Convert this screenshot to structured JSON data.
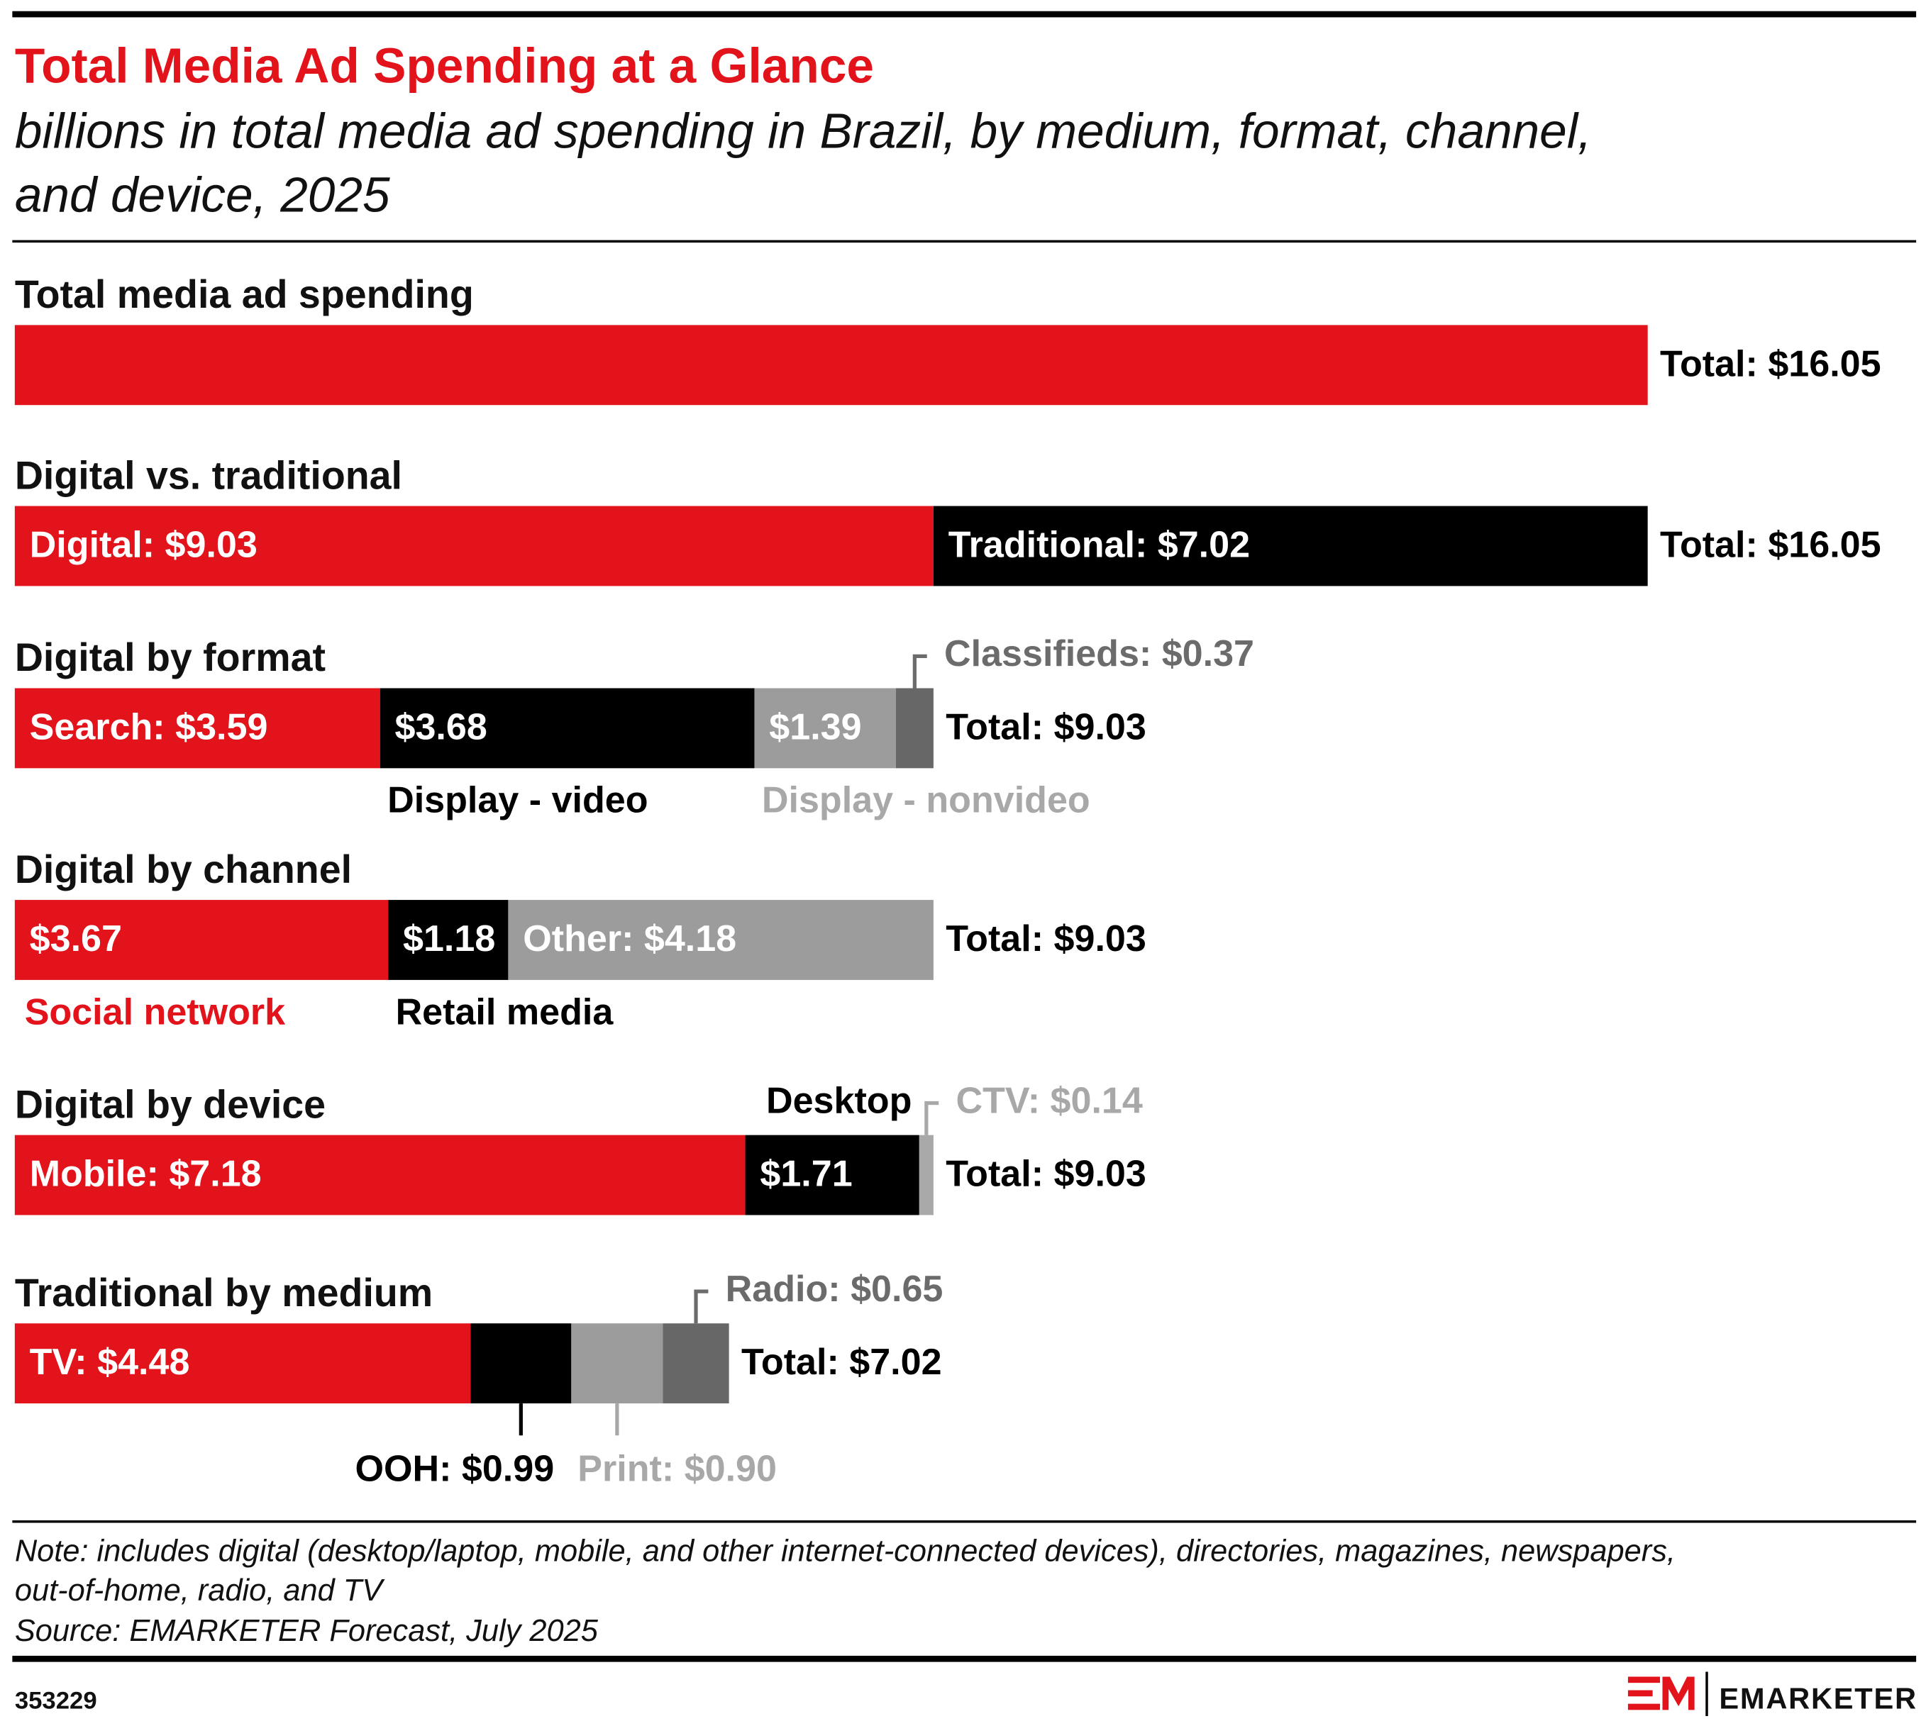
{
  "header": {
    "title": "Total Media Ad Spending at a Glance",
    "subtitle_lines": [
      "billions in total media ad spending in Brazil, by medium, format, channel,",
      "and device, 2025"
    ]
  },
  "chart_data": [
    {
      "type": "stacked-bar",
      "title": "Total media ad spending",
      "xlim": [
        0,
        16.05
      ],
      "series": [
        {
          "color": "#e3131b",
          "values": [
            16.05
          ]
        }
      ],
      "total": {
        "value": 16.05,
        "label": "Total: $16.05"
      }
    },
    {
      "type": "stacked-bar",
      "title": "Digital vs. traditional",
      "xlim": [
        0,
        16.05
      ],
      "series": [
        {
          "color": "#e3131b",
          "values": [
            9.03
          ],
          "value_labels": [
            "Digital: $9.03"
          ]
        },
        {
          "color": "#000000",
          "values": [
            7.02
          ],
          "value_labels": [
            "Traditional: $7.02"
          ]
        }
      ],
      "total": {
        "value": 16.05,
        "label": "Total: $16.05"
      }
    },
    {
      "type": "stacked-bar",
      "title": "Digital by format",
      "xlim": [
        0,
        16.05
      ],
      "series": [
        {
          "color": "#e3131b",
          "values": [
            3.59
          ],
          "value_labels": [
            "Search: $3.59"
          ]
        },
        {
          "name": "Display - video",
          "color": "#000000",
          "values": [
            3.68
          ],
          "value_labels": [
            "$3.68"
          ],
          "label_color": "#000000"
        },
        {
          "name": "Display - nonvideo",
          "color": "#9c9c9c",
          "values": [
            1.39
          ],
          "value_labels": [
            "$1.39"
          ],
          "label_color": "#a8a8a8"
        },
        {
          "color": "#676767",
          "values": [
            0.37
          ],
          "value_labels": [
            "Classifieds: $0.37"
          ],
          "label_color": "#6b6b6b"
        }
      ],
      "total": {
        "value": 9.03,
        "label": "Total: $9.03"
      }
    },
    {
      "type": "stacked-bar",
      "title": "Digital by channel",
      "xlim": [
        0,
        16.05
      ],
      "series": [
        {
          "name": "Social network",
          "color": "#e3131b",
          "values": [
            3.67
          ],
          "value_labels": [
            "$3.67"
          ],
          "label_color": "#e3131b"
        },
        {
          "name": "Retail media",
          "color": "#000000",
          "values": [
            1.18
          ],
          "value_labels": [
            "$1.18"
          ],
          "label_color": "#000000"
        },
        {
          "color": "#9c9c9c",
          "values": [
            4.18
          ],
          "value_labels": [
            "Other: $4.18"
          ]
        }
      ],
      "total": {
        "value": 9.03,
        "label": "Total: $9.03"
      }
    },
    {
      "type": "stacked-bar",
      "title": "Digital by device",
      "xlim": [
        0,
        16.05
      ],
      "series": [
        {
          "color": "#e3131b",
          "values": [
            7.18
          ],
          "value_labels": [
            "Mobile: $7.18"
          ]
        },
        {
          "name": "Desktop",
          "color": "#000000",
          "values": [
            1.71
          ],
          "value_labels": [
            "$1.71"
          ],
          "label_color": "#000000"
        },
        {
          "color": "#a8a8a8",
          "values": [
            0.14
          ],
          "value_labels": [
            "CTV: $0.14"
          ],
          "label_color": "#a8a8a8"
        }
      ],
      "total": {
        "value": 9.03,
        "label": "Total: $9.03"
      }
    },
    {
      "type": "stacked-bar",
      "title": "Traditional by medium",
      "xlim": [
        0,
        16.05
      ],
      "series": [
        {
          "color": "#e3131b",
          "values": [
            4.48
          ],
          "value_labels": [
            "TV: $4.48"
          ]
        },
        {
          "color": "#000000",
          "values": [
            0.99
          ],
          "value_labels": [
            "OOH: $0.99"
          ],
          "label_color": "#000000"
        },
        {
          "color": "#9c9c9c",
          "values": [
            0.9
          ],
          "value_labels": [
            "Print: $0.90"
          ],
          "label_color": "#a8a8a8"
        },
        {
          "color": "#676767",
          "values": [
            0.65
          ],
          "value_labels": [
            "Radio: $0.65"
          ],
          "label_color": "#6b6b6b"
        }
      ],
      "total": {
        "value": 7.02,
        "label": "Total: $7.02"
      }
    }
  ],
  "footer": {
    "note_lines": [
      "Note: includes digital (desktop/laptop, mobile, and other internet-connected devices), directories, magazines, newspapers,",
      "out-of-home, radio, and TV"
    ],
    "source": "Source: EMARKETER Forecast, July 2025",
    "id": "353229",
    "brand": "EMARKETER"
  }
}
